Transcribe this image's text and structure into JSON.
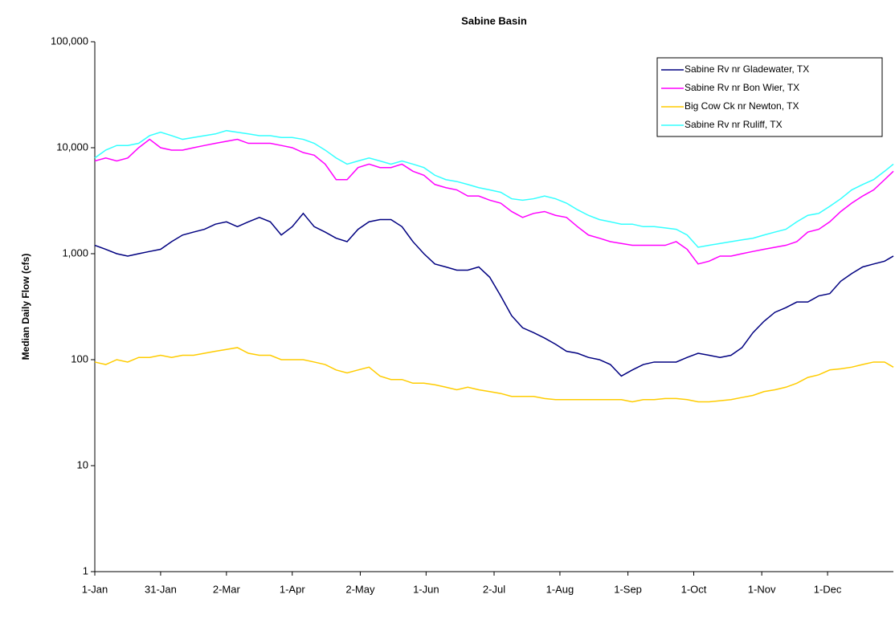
{
  "chart_data": {
    "type": "line",
    "title": "Sabine Basin",
    "y_label": "Median Daily Flow (cfs)",
    "log_y": true,
    "grid": false,
    "legend": "upper right",
    "xlim": [
      0,
      364
    ],
    "xticks": [
      {
        "value": 0,
        "label": "1-Jan"
      },
      {
        "value": 30,
        "label": "31-Jan"
      },
      {
        "value": 60,
        "label": "2-Mar"
      },
      {
        "value": 90,
        "label": "1-Apr"
      },
      {
        "value": 121,
        "label": "2-May"
      },
      {
        "value": 151,
        "label": "1-Jun"
      },
      {
        "value": 182,
        "label": "2-Jul"
      },
      {
        "value": 212,
        "label": "1-Aug"
      },
      {
        "value": 243,
        "label": "1-Sep"
      },
      {
        "value": 273,
        "label": "1-Oct"
      },
      {
        "value": 304,
        "label": "1-Nov"
      },
      {
        "value": 334,
        "label": "1-Dec"
      }
    ],
    "ylim": [
      1,
      100000
    ],
    "yticks": [
      1,
      10,
      100,
      {
        "value": 1000,
        "label": "1,000"
      },
      {
        "value": 10000,
        "label": "10,000"
      },
      {
        "value": 100000,
        "label": "100,000"
      }
    ],
    "x": [
      0,
      5,
      10,
      15,
      20,
      25,
      30,
      35,
      40,
      45,
      50,
      55,
      60,
      65,
      70,
      75,
      80,
      85,
      90,
      95,
      100,
      105,
      110,
      115,
      120,
      125,
      130,
      135,
      140,
      145,
      150,
      155,
      160,
      165,
      170,
      175,
      180,
      185,
      190,
      195,
      200,
      205,
      210,
      215,
      220,
      225,
      230,
      235,
      240,
      245,
      250,
      255,
      260,
      265,
      270,
      275,
      280,
      285,
      290,
      295,
      300,
      305,
      310,
      315,
      320,
      325,
      330,
      335,
      340,
      345,
      350,
      355,
      360,
      364
    ],
    "series": [
      {
        "name": "Sabine Rv nr Gladewater, TX",
        "color": "#000080",
        "values": [
          1200,
          1100,
          1000,
          950,
          1000,
          1050,
          1100,
          1300,
          1500,
          1600,
          1700,
          1900,
          2000,
          1800,
          2000,
          2200,
          2000,
          1500,
          1800,
          2400,
          1800,
          1600,
          1400,
          1300,
          1700,
          2000,
          2100,
          2100,
          1800,
          1300,
          1000,
          800,
          750,
          700,
          700,
          750,
          600,
          400,
          260,
          200,
          180,
          160,
          140,
          120,
          115,
          105,
          100,
          90,
          70,
          80,
          90,
          95,
          95,
          95,
          105,
          115,
          110,
          105,
          110,
          130,
          180,
          230,
          280,
          310,
          350,
          350,
          400,
          420,
          550,
          650,
          750,
          800,
          850,
          950
        ]
      },
      {
        "name": "Sabine Rv nr Bon Wier, TX",
        "color": "#ff00ff",
        "values": [
          7500,
          8000,
          7500,
          8000,
          10000,
          12000,
          10000,
          9500,
          9500,
          10000,
          10500,
          11000,
          11500,
          12000,
          11000,
          11000,
          11000,
          10500,
          10000,
          9000,
          8500,
          7000,
          5000,
          5000,
          6500,
          7000,
          6500,
          6500,
          7000,
          6000,
          5500,
          4500,
          4200,
          4000,
          3500,
          3500,
          3200,
          3000,
          2500,
          2200,
          2400,
          2500,
          2300,
          2200,
          1800,
          1500,
          1400,
          1300,
          1250,
          1200,
          1200,
          1200,
          1200,
          1300,
          1100,
          800,
          850,
          950,
          950,
          1000,
          1050,
          1100,
          1150,
          1200,
          1300,
          1600,
          1700,
          2000,
          2500,
          3000,
          3500,
          4000,
          5000,
          6000
        ]
      },
      {
        "name": "Big Cow Ck nr Newton, TX",
        "color": "#ffcc00",
        "values": [
          95,
          90,
          100,
          95,
          105,
          105,
          110,
          105,
          110,
          110,
          115,
          120,
          125,
          130,
          115,
          110,
          110,
          100,
          100,
          100,
          95,
          90,
          80,
          75,
          80,
          85,
          70,
          65,
          65,
          60,
          60,
          58,
          55,
          52,
          55,
          52,
          50,
          48,
          45,
          45,
          45,
          43,
          42,
          42,
          42,
          42,
          42,
          42,
          42,
          40,
          42,
          42,
          43,
          43,
          42,
          40,
          40,
          41,
          42,
          44,
          46,
          50,
          52,
          55,
          60,
          68,
          72,
          80,
          82,
          85,
          90,
          95,
          95,
          85
        ]
      },
      {
        "name": "Sabine Rv nr Ruliff, TX",
        "color": "#33ffff",
        "values": [
          8000,
          9500,
          10500,
          10500,
          11000,
          13000,
          14000,
          13000,
          12000,
          12500,
          13000,
          13500,
          14500,
          14000,
          13500,
          13000,
          13000,
          12500,
          12500,
          12000,
          11000,
          9500,
          8000,
          7000,
          7500,
          8000,
          7500,
          7000,
          7500,
          7000,
          6500,
          5500,
          5000,
          4800,
          4500,
          4200,
          4000,
          3800,
          3300,
          3200,
          3300,
          3500,
          3300,
          3000,
          2600,
          2300,
          2100,
          2000,
          1900,
          1900,
          1800,
          1800,
          1750,
          1700,
          1500,
          1150,
          1200,
          1250,
          1300,
          1350,
          1400,
          1500,
          1600,
          1700,
          2000,
          2300,
          2400,
          2800,
          3300,
          4000,
          4500,
          5000,
          6000,
          7000
        ]
      }
    ]
  }
}
